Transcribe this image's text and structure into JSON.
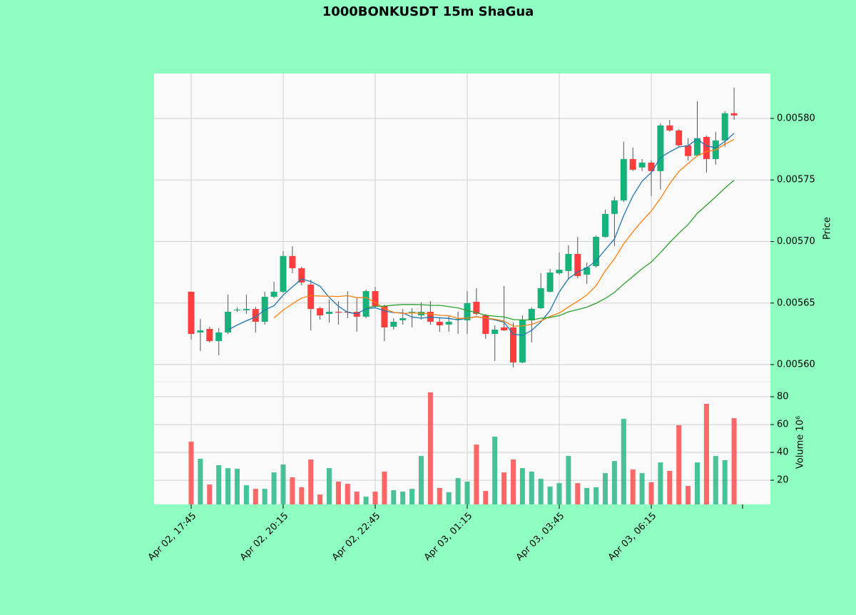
{
  "chart_data": {
    "type": "candlestick",
    "title": "1000BONKUSDT 15m ShaGua",
    "ylabel": "Price",
    "volume_label": "Volume  10⁶",
    "up_color": "#16b27a",
    "down_color": "#fe3e3e",
    "grid": true,
    "categories": [
      "Apr 02, 17:45",
      null,
      null,
      null,
      null,
      null,
      null,
      null,
      null,
      null,
      "Apr 02, 20:15",
      null,
      null,
      null,
      null,
      null,
      null,
      null,
      null,
      null,
      "Apr 02, 22:45",
      null,
      null,
      null,
      null,
      null,
      null,
      null,
      null,
      null,
      "Apr 03, 01:15",
      null,
      null,
      null,
      null,
      null,
      null,
      null,
      null,
      null,
      "Apr 03, 03:45",
      null,
      null,
      null,
      null,
      null,
      null,
      null,
      null,
      null,
      "Apr 03, 06:15",
      null,
      null,
      null,
      null,
      null,
      null,
      null,
      null,
      null
    ],
    "open": [
      0.0056592,
      0.0056261,
      0.005629,
      0.0056191,
      0.0056261,
      0.0056441,
      0.0056441,
      0.0056452,
      0.0056348,
      0.0056551,
      0.0056592,
      0.0056882,
      0.0056783,
      0.005665,
      0.0056458,
      0.0056412,
      0.0056429,
      0.0056429,
      0.0056429,
      0.0056389,
      0.0056597,
      0.0056476,
      0.0056307,
      0.005636,
      0.0056423,
      0.00564,
      0.0056429,
      0.0056348,
      0.0056325,
      0.0056365,
      0.005636,
      0.005651,
      0.00564,
      0.0056249,
      0.0056302,
      0.0056302,
      0.0056017,
      0.005636,
      0.0056458,
      0.0056592,
      0.0056742,
      0.005676,
      0.0056899,
      0.0056731,
      0.00568,
      0.0057038,
      0.0057224,
      0.0057334,
      0.005767,
      0.0057601,
      0.0057641,
      0.0057572,
      0.0057943,
      0.0057902,
      0.0057781,
      0.0057699,
      0.005785,
      0.005767,
      0.0057821,
      0.0058042
    ],
    "high": [
      0.0056592,
      0.0056371,
      0.0056307,
      0.0056296,
      0.0056568,
      0.0056464,
      0.0056568,
      0.005647,
      0.0056592,
      0.0056673,
      0.0056922,
      0.0056963,
      0.0056795,
      0.005669,
      0.005647,
      0.0056528,
      0.0056516,
      0.0056597,
      0.0056539,
      0.0056609,
      0.0056632,
      0.0056487,
      0.0056377,
      0.0056452,
      0.0056458,
      0.0056505,
      0.0056516,
      0.0056377,
      0.00564,
      0.0056429,
      0.0056597,
      0.0056621,
      0.0056412,
      0.0056319,
      0.0056638,
      0.0056342,
      0.00564,
      0.0056464,
      0.0056742,
      0.0056777,
      0.0056911,
      0.0056969,
      0.0057038,
      0.0056829,
      0.005705,
      0.0057259,
      0.0057363,
      0.005781,
      0.0057763,
      0.005767,
      0.0057659,
      0.005796,
      0.0057989,
      0.0057914,
      0.0057839,
      0.005814,
      0.0057862,
      0.0057891,
      0.0058059,
      0.005825
    ],
    "low": [
      0.0056203,
      0.005611,
      0.005618,
      0.0056075,
      0.0056249,
      0.0056429,
      0.0056412,
      0.0056261,
      0.0056325,
      0.0056539,
      0.005658,
      0.0056742,
      0.0056644,
      0.0056278,
      0.0056365,
      0.0056342,
      0.0056325,
      0.0056377,
      0.0056267,
      0.0056377,
      0.0056458,
      0.0056191,
      0.0056284,
      0.0056325,
      0.0056302,
      0.0056365,
      0.0056325,
      0.0056267,
      0.0056267,
      0.0056249,
      0.0056249,
      0.00564,
      0.0056209,
      0.0056029,
      0.0056273,
      0.0055977,
      0.0056012,
      0.005618,
      0.0056452,
      0.0056586,
      0.0056731,
      0.005669,
      0.0056702,
      0.0056655,
      0.0056789,
      0.0057032,
      0.0056963,
      0.0057322,
      0.0057572,
      0.0057572,
      0.0057369,
      0.0057421,
      0.0057891,
      0.0057763,
      0.0057659,
      0.0057694,
      0.005756,
      0.0057624,
      0.0057769,
      0.0057989
    ],
    "close": [
      0.0056249,
      0.0056278,
      0.0056191,
      0.0056261,
      0.0056429,
      0.0056447,
      0.0056452,
      0.0056348,
      0.0056551,
      0.0056592,
      0.0056882,
      0.0056783,
      0.0056667,
      0.0056452,
      0.00564,
      0.0056429,
      0.0056423,
      0.0056423,
      0.0056389,
      0.0056597,
      0.0056476,
      0.0056302,
      0.0056348,
      0.0056377,
      0.0056429,
      0.0056429,
      0.0056348,
      0.0056319,
      0.0056348,
      0.0056371,
      0.0056499,
      0.0056412,
      0.0056249,
      0.0056284,
      0.0056278,
      0.0056017,
      0.005636,
      0.0056452,
      0.0056621,
      0.0056748,
      0.0056771,
      0.0056899,
      0.0056719,
      0.0056789,
      0.0057038,
      0.0057224,
      0.0057334,
      0.005767,
      0.0057583,
      0.0057641,
      0.0057572,
      0.0057943,
      0.0057902,
      0.0057781,
      0.0057694,
      0.0057839,
      0.005767,
      0.0057821,
      0.0058042,
      0.0058024
    ],
    "volume": [
      47.7,
      35.4,
      16.9,
      30.8,
      28.7,
      28.2,
      16.4,
      13.8,
      13.8,
      25.6,
      31.3,
      22.1,
      14.9,
      34.9,
      9.7,
      28.7,
      19,
      17.4,
      11.8,
      8.2,
      11.8,
      26.2,
      12.8,
      11.8,
      13.8,
      37.4,
      83.1,
      14.4,
      11.3,
      21.5,
      19,
      45.6,
      12.3,
      51.3,
      25.6,
      34.9,
      28.7,
      26.2,
      21,
      15.4,
      17.9,
      37.4,
      17.9,
      14.4,
      14.9,
      25.1,
      33.8,
      64.1,
      27.7,
      25.1,
      18.5,
      32.8,
      26.7,
      59.5,
      15.9,
      32.8,
      74.9,
      37.4,
      34.4,
      64.6
    ],
    "moving_averages": [
      {
        "color": "#1f77b4",
        "values": [
          null,
          null,
          null,
          null,
          0.0056282,
          0.0056321,
          0.0056356,
          0.0056387,
          0.0056445,
          0.0056478,
          0.0056565,
          0.0056631,
          0.0056695,
          0.0056675,
          0.0056637,
          0.0056546,
          0.0056474,
          0.0056425,
          0.0056413,
          0.0056452,
          0.0056462,
          0.0056437,
          0.0056422,
          0.005642,
          0.0056386,
          0.0056377,
          0.0056386,
          0.005638,
          0.0056375,
          0.0056363,
          0.0056377,
          0.005639,
          0.0056376,
          0.0056363,
          0.0056344,
          0.0056248,
          0.0056238,
          0.0056278,
          0.0056346,
          0.005644,
          0.005659,
          0.0056698,
          0.0056752,
          0.0056785,
          0.0056843,
          0.0056934,
          0.0057021,
          0.0057211,
          0.005737,
          0.005749,
          0.005756,
          0.0057682,
          0.0057728,
          0.0057768,
          0.0057778,
          0.0057832,
          0.0057777,
          0.0057761,
          0.0057813,
          0.0057879
        ]
      },
      {
        "color": "#ff7f0e",
        "values": [
          null,
          null,
          null,
          null,
          null,
          null,
          null,
          null,
          null,
          0.005638,
          0.0056443,
          0.0056494,
          0.0056541,
          0.005656,
          0.0056557,
          0.0056556,
          0.0056553,
          0.005656,
          0.0056544,
          0.0056545,
          0.0056504,
          0.0056456,
          0.0056424,
          0.0056416,
          0.0056419,
          0.0056419,
          0.0056412,
          0.0056401,
          0.0056397,
          0.0056375,
          0.0056377,
          0.0056388,
          0.0056378,
          0.0056369,
          0.0056354,
          0.0056313,
          0.0056314,
          0.0056327,
          0.0056354,
          0.0056392,
          0.0056419,
          0.0056468,
          0.0056515,
          0.0056565,
          0.0056641,
          0.0056762,
          0.005686,
          0.0056981,
          0.0057078,
          0.0057167,
          0.0057247,
          0.0057351,
          0.005747,
          0.0057569,
          0.0057634,
          0.0057696,
          0.005773,
          0.0057745,
          0.0057791,
          0.0057829
        ]
      },
      {
        "color": "#2ca02c",
        "values": [
          null,
          null,
          null,
          null,
          null,
          null,
          null,
          null,
          null,
          null,
          null,
          null,
          null,
          null,
          null,
          null,
          null,
          null,
          null,
          0.0056462,
          0.0056474,
          0.0056475,
          0.0056483,
          0.0056488,
          0.0056488,
          0.0056487,
          0.0056482,
          0.0056481,
          0.0056471,
          0.005646,
          0.005644,
          0.0056422,
          0.0056401,
          0.0056393,
          0.0056387,
          0.0056366,
          0.0056363,
          0.0056364,
          0.0056376,
          0.0056383,
          0.0056398,
          0.0056428,
          0.0056447,
          0.0056467,
          0.0056498,
          0.0056537,
          0.0056587,
          0.0056654,
          0.0056716,
          0.0056779,
          0.0056833,
          0.005691,
          0.0056992,
          0.0057067,
          0.0057138,
          0.0057229,
          0.0057295,
          0.0057363,
          0.0057434,
          0.0057498
        ]
      }
    ],
    "ylim": [
      0.0055861,
      0.0058365
    ],
    "yticks": [
      {
        "value": 0.0056,
        "label": "0.00560"
      },
      {
        "value": 0.00565,
        "label": "0.00565"
      },
      {
        "value": 0.0057,
        "label": "0.00570"
      },
      {
        "value": 0.00575,
        "label": "0.00575"
      },
      {
        "value": 0.0058,
        "label": "0.00580"
      }
    ],
    "y2lim": [
      2.6,
      90.8
    ],
    "y2ticks": [
      20,
      40,
      60,
      80
    ]
  }
}
